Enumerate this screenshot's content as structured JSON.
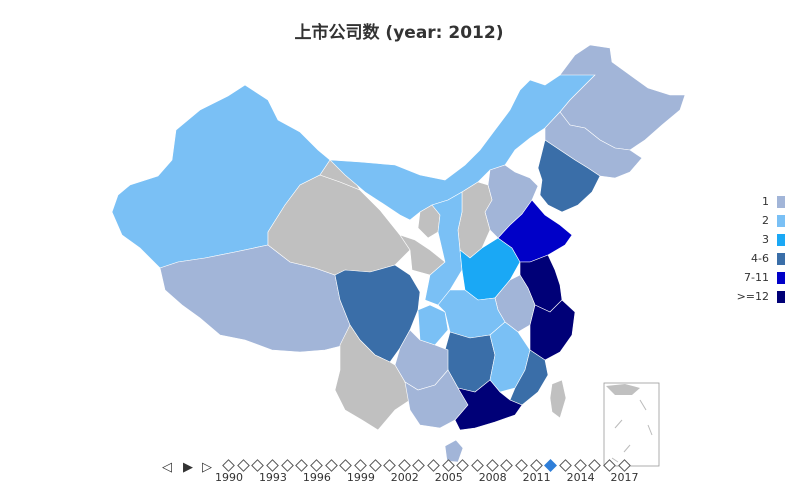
{
  "title": "上市公司数 (year: 2012)",
  "legend": [
    {
      "label": "1",
      "color": "#a2b5d8"
    },
    {
      "label": "2",
      "color": "#7ac0f5"
    },
    {
      "label": "3",
      "color": "#1aa8f5"
    },
    {
      "label": "4-6",
      "color": "#3a6ea8"
    },
    {
      "label": "7-11",
      "color": "#0000c8"
    },
    {
      "label": ">=12",
      "color": "#000077"
    }
  ],
  "no_data_color": "#c0c0c0",
  "timeline": {
    "prev_icon": "◁",
    "play_icon": "▶",
    "next_icon": "▷",
    "current_year": 2012,
    "years": [
      1990,
      1991,
      1992,
      1993,
      1994,
      1995,
      1996,
      1997,
      1998,
      1999,
      2000,
      2001,
      2002,
      2003,
      2004,
      2005,
      2006,
      2007,
      2008,
      2009,
      2010,
      2011,
      2012,
      2013,
      2014,
      2015,
      2016,
      2017
    ],
    "labels": [
      "1990",
      "1993",
      "1996",
      "1999",
      "2002",
      "2005",
      "2008",
      "2011",
      "2014",
      "2017"
    ]
  },
  "chart_data": {
    "type": "map",
    "title": "上市公司数 (year: 2012)",
    "legend_placement": "right",
    "bins": [
      "1",
      "2",
      "3",
      "4-6",
      "7-11",
      ">=12"
    ],
    "regions": [
      {
        "name": "Xinjiang",
        "bin": "2"
      },
      {
        "name": "Tibet",
        "bin": "1"
      },
      {
        "name": "Qinghai",
        "bin": null
      },
      {
        "name": "Gansu",
        "bin": null
      },
      {
        "name": "Inner Mongolia",
        "bin": "2"
      },
      {
        "name": "Heilongjiang",
        "bin": "1"
      },
      {
        "name": "Jilin",
        "bin": "1"
      },
      {
        "name": "Liaoning",
        "bin": "4-6"
      },
      {
        "name": "Beijing",
        "bin": ">=12"
      },
      {
        "name": "Hebei",
        "bin": "1"
      },
      {
        "name": "Shanxi",
        "bin": null
      },
      {
        "name": "Ningxia",
        "bin": null
      },
      {
        "name": "Shaanxi",
        "bin": "2"
      },
      {
        "name": "Henan",
        "bin": "3"
      },
      {
        "name": "Shandong",
        "bin": "7-11"
      },
      {
        "name": "Jiangsu",
        "bin": ">=12"
      },
      {
        "name": "Anhui",
        "bin": "1"
      },
      {
        "name": "Zhejiang",
        "bin": ">=12"
      },
      {
        "name": "Sichuan",
        "bin": "4-6"
      },
      {
        "name": "Chongqing",
        "bin": "2"
      },
      {
        "name": "Hubei",
        "bin": "2"
      },
      {
        "name": "Hunan",
        "bin": "4-6"
      },
      {
        "name": "Jiangxi",
        "bin": "2"
      },
      {
        "name": "Fujian",
        "bin": "4-6"
      },
      {
        "name": "Guizhou",
        "bin": "1"
      },
      {
        "name": "Yunnan",
        "bin": null
      },
      {
        "name": "Guangxi",
        "bin": "1"
      },
      {
        "name": "Guangdong",
        "bin": ">=12"
      },
      {
        "name": "Hainan",
        "bin": "1"
      },
      {
        "name": "Taiwan",
        "bin": null
      }
    ]
  }
}
